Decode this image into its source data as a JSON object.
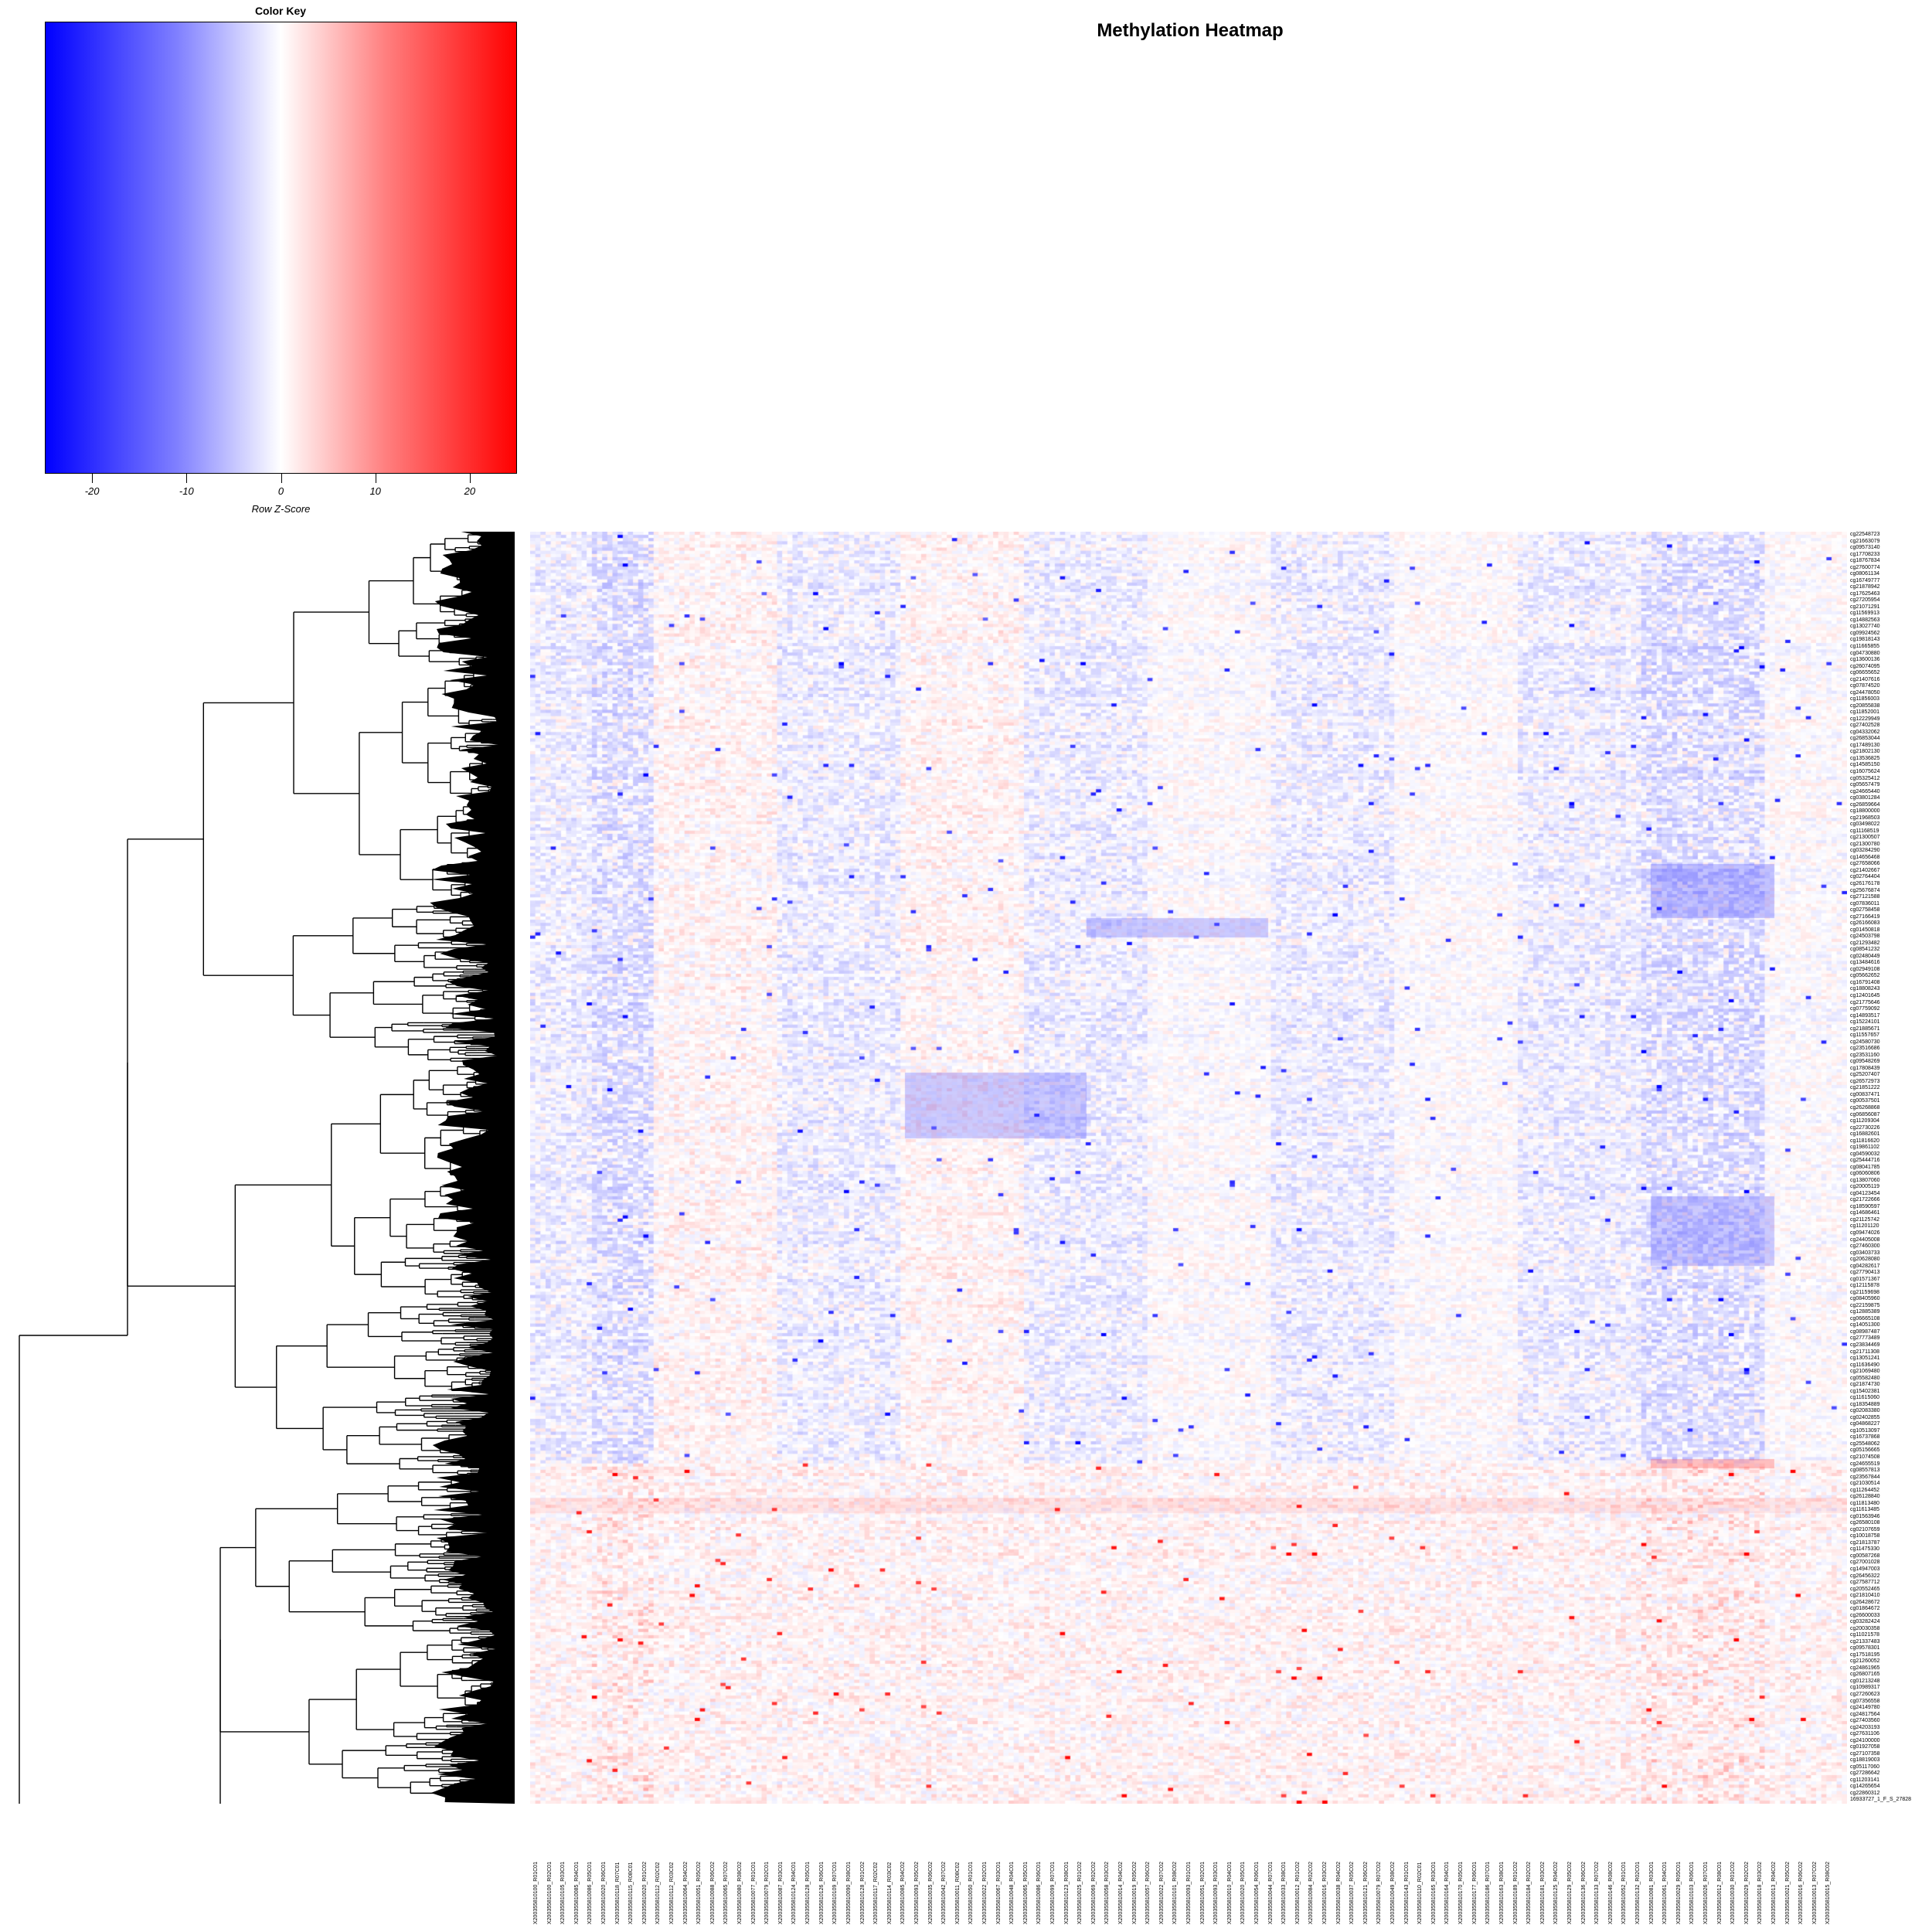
{
  "title": "Methylation Heatmap",
  "color_key": {
    "title": "Color Key",
    "xlabel": "Row Z-Score",
    "ticks": [
      -20,
      -10,
      0,
      10,
      20
    ],
    "range": [
      -25,
      25
    ],
    "colors": {
      "low": "#0000ff",
      "mid": "#ffffff",
      "high": "#ff0000"
    }
  },
  "chart_data": {
    "type": "heatmap",
    "title": "Methylation Heatmap",
    "scale": "Row Z-Score",
    "value_range": [
      -25,
      25
    ],
    "dendrogram": "rows",
    "n_rows_approx": 1200,
    "n_cols_approx": 256,
    "row_labels_visible": [
      "cg22548723",
      "cg21663079",
      "cg09573140",
      "cg17708233",
      "cg18767834",
      "cg27600774",
      "cg08061134",
      "cg16749777",
      "cg21878942",
      "cg17625463",
      "cg27205954",
      "cg21071291",
      "cg11569913",
      "cg14882563",
      "cg13027740",
      "cg09924562",
      "cg19818143",
      "cg11665855",
      "cg04730880",
      "cg13600136",
      "cg26074095",
      "cg06655652",
      "cg21407616",
      "cg07874520",
      "cg24478050",
      "cg11856003",
      "cg20855838",
      "cg11852001",
      "cg12229949",
      "cg27402528",
      "cg04332062",
      "cg26853044",
      "cg17489130",
      "cg21802130",
      "cg13536825",
      "cg14585150",
      "cg16075624",
      "cg05325412",
      "cg05657479",
      "cg24665440",
      "cg03801284",
      "cg26859664",
      "cg18800000",
      "cg21968503",
      "cg03498022",
      "cg11168519",
      "cg21300507",
      "cg21300780",
      "cg03284290",
      "cg14656468",
      "cg27658066",
      "cg21402667",
      "cg02764404",
      "cg26176178",
      "cg25676874",
      "cg27121588",
      "cg07836011",
      "cg02758458",
      "cg27166419",
      "cg26166083",
      "cg01450818",
      "cg24503798",
      "cg21293482",
      "cg08541232",
      "cg02480449",
      "cg13484616",
      "cg02949108",
      "cg05662652",
      "cg16791408",
      "cg18808243",
      "cg12401645",
      "cg21775646",
      "cg07759092",
      "cg14893517",
      "cg15224101",
      "cg21885671",
      "cg11557657",
      "cg24580730",
      "cg23516686",
      "cg23531160",
      "cg09548269",
      "cg17808439",
      "cg25207407",
      "cg26572973",
      "cg21851222",
      "cg00837471",
      "cg00537501",
      "cg26268868",
      "cg06856087",
      "cg11209304",
      "cg22730226",
      "cg16882601",
      "cg11816620",
      "cg19861102",
      "cg04590032",
      "cg25444716",
      "cg08041785",
      "cg06060806",
      "cg13807060",
      "cg20005119",
      "cg04123454",
      "cg21722666",
      "cg18590597",
      "cg14686461",
      "cg21125742",
      "cg11201120",
      "cg09474026",
      "cg24405008",
      "cg27460300",
      "cg03403733",
      "cg20628080",
      "cg04282617",
      "cg27790413",
      "cg01571367",
      "cg12115878",
      "cg21159698",
      "cg08405960",
      "cg22159875",
      "cg12885389",
      "cg06665108",
      "cg14051300",
      "cg08987487",
      "cg27773489",
      "cg23834469",
      "cg21711308",
      "cg13051241",
      "cg11636490",
      "cg21069480",
      "cg05582480",
      "cg21874730",
      "cg15402381",
      "cg11615060",
      "cg18354889",
      "cg02083380",
      "cg02402855",
      "cg04868227",
      "cg10513097",
      "cg16737868",
      "cg25548062",
      "cg05156665",
      "cg21074508",
      "cg24655519",
      "cg08557813",
      "cg23567844",
      "cg21030514",
      "cg11264452",
      "cg26128840",
      "cg11813480",
      "cg11613485",
      "cg01563946",
      "cg26580108",
      "cg02107659",
      "cg10018758",
      "cg21813787",
      "cg11475330",
      "cg00587268",
      "cg27001028",
      "cg14947003",
      "cg26456322",
      "cg27587712",
      "cg20552465",
      "cg21810410",
      "cg26428672",
      "cg01864672",
      "cg26600033",
      "cg03282424",
      "cg20030358",
      "cg11021578",
      "cg21337483",
      "cg09578301",
      "cg17518195",
      "cg21260052",
      "cg24861965",
      "cg26807165",
      "cg01213248",
      "cg10989317",
      "cg27260623",
      "cg07356558",
      "cg24149780",
      "cg24817564",
      "cg27403560",
      "cg24203193",
      "cg27631106",
      "cg24100000",
      "cg01927058",
      "cg27107358",
      "cg18819003",
      "cg05117060",
      "cg27286642",
      "cg11203141",
      "cg14265654",
      "cg22860312",
      "16933727_1_F_S_27828"
    ],
    "column_labels_visible": [
      "X200355810100_R01C01",
      "X200355810100_R02C01",
      "X200355810105_R03C01",
      "X200355810085_R04C01",
      "X200355810086_R05C01",
      "X200355810020_R06C01",
      "X200355810118_R07C01",
      "X200355810115_R08C01",
      "X200355810020_R01C02",
      "X200355810112_R02C02",
      "X200355810112_R03C02",
      "X200355810064_R04C02",
      "X200355810051_R05C02",
      "X200355810088_R06C02",
      "X200355810065_R07C02",
      "X200355810080_R08C02",
      "X200355810077_R01C01",
      "X200355810079_R02C01",
      "X200355810087_R03C01",
      "X200355810124_R04C01",
      "X200355810128_R05C01",
      "X200355810126_R06C01",
      "X200355810109_R07C01",
      "X200355810090_R08C01",
      "X200355810128_R01C02",
      "X200355810117_R02C02",
      "X200355810114_R03C02",
      "X200355810085_R04C02",
      "X200355810093_R05C02",
      "X200355810035_R06C02",
      "X200355810042_R07C02",
      "X200355810011_R08C02",
      "X200355810050_R01C01",
      "X200355810022_R02C01",
      "X200355810067_R03C01",
      "X200355810048_R04C01",
      "X200355810065_R05C01",
      "X200355810086_R06C01",
      "X200355810099_R07C01",
      "X200355810123_R08C01",
      "X200355810025_R01C02",
      "X200355810069_R02C02",
      "X200355810058_R03C02",
      "X200355810014_R04C02",
      "X200355810019_R05C02",
      "X200355810057_R06C02",
      "X200355810022_R07C02",
      "X200355810101_R08C02",
      "X200355810093_R01C01",
      "X200355810051_R02C01",
      "X200355810093_R03C01",
      "X200355810010_R04C01",
      "X200355810020_R05C01",
      "X200355810054_R06C01",
      "X200355810044_R07C01",
      "X200355810033_R08C01",
      "X200355810012_R01C02",
      "X200355810084_R02C02",
      "X200355810016_R03C02",
      "X200355810038_R04C02",
      "X200355810037_R05C02",
      "X200355810121_R06C02",
      "X200355810079_R07C02",
      "X200355810049_R08C02",
      "X200355810143_R01C01",
      "X200355810110_R02C01",
      "X200355810165_R03C01",
      "X200355810164_R04C01",
      "X200355810170_R05C01",
      "X200355810177_R06C01",
      "X200355810186_R07C01",
      "X200355810163_R08C01",
      "X200355810189_R01C02",
      "X200355810184_R02C02",
      "X200355810181_R03C02",
      "X200355810125_R04C02",
      "X200355810129_R05C02",
      "X200355810136_R06C02",
      "X200355810133_R07C02",
      "X200355810146_R08C02",
      "X200355810052_R01C01",
      "X200355810132_R02C01",
      "X200355810081_R03C01",
      "X200355810061_R04C01",
      "X200355810029_R05C01",
      "X200355810103_R06C01",
      "X200355810026_R07C01",
      "X200355810012_R08C01",
      "X200355810030_R01C02",
      "X200355810029_R02C02",
      "X200355810018_R03C02",
      "X200355810013_R04C02",
      "X200355810021_R05C02",
      "X200355810016_R06C02",
      "X200355810013_R07C02",
      "X200355810015_R08C02"
    ]
  }
}
